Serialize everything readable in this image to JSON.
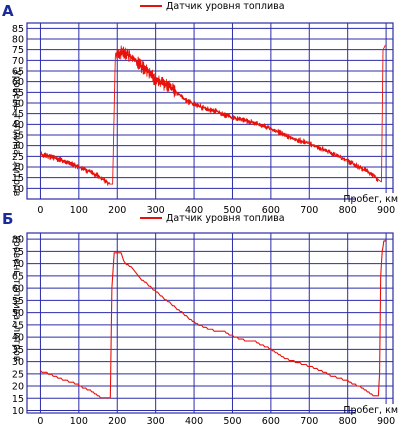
{
  "colors": {
    "grid": "#2c2ca8",
    "series": "#e8120c",
    "panel_label": "#1a2a9a",
    "text": "#000000"
  },
  "chart_data": [
    {
      "panel_label": "А",
      "type": "line",
      "legend": "Датчик уровня топлива",
      "ylabel": "Уровень топлива, литров",
      "xlabel": "Пробег, км",
      "xlim": [
        -35,
        918
      ],
      "ylim": [
        5,
        87.5
      ],
      "xticks": [
        0,
        100,
        200,
        300,
        400,
        500,
        600,
        700,
        800,
        900
      ],
      "yticks": [
        10,
        15,
        20,
        25,
        30,
        35,
        40,
        45,
        50,
        55,
        60,
        65,
        70,
        75,
        80,
        85
      ],
      "grid": true,
      "noise": true,
      "series": [
        {
          "x": [
            0,
            20,
            60,
            100,
            150,
            180,
            188,
            195,
            215,
            240,
            270,
            300,
            340,
            380,
            420,
            460,
            500,
            550,
            600,
            650,
            700,
            750,
            800,
            850,
            880,
            888,
            892,
            898
          ],
          "y": [
            26,
            25,
            23,
            20,
            16,
            12,
            12,
            73,
            74,
            71,
            66,
            61,
            57,
            51,
            48,
            46,
            43,
            41,
            38,
            34,
            31,
            27,
            23,
            18,
            14,
            13,
            75,
            77
          ]
        }
      ]
    },
    {
      "panel_label": "Б",
      "type": "line",
      "legend": "Датчик уровня топлива",
      "ylabel": "Уровень топлива, литров",
      "xlabel": "Пробег, км",
      "xlim": [
        -35,
        918
      ],
      "ylim": [
        9,
        82.5
      ],
      "xticks": [
        0,
        100,
        200,
        300,
        400,
        500,
        600,
        700,
        800,
        900
      ],
      "yticks": [
        10,
        15,
        20,
        25,
        30,
        35,
        40,
        45,
        50,
        55,
        60,
        65,
        70,
        75,
        80
      ],
      "grid": true,
      "noise": false,
      "series": [
        {
          "x": [
            0,
            25,
            50,
            90,
            130,
            160,
            182,
            186,
            192,
            198,
            210,
            220,
            240,
            260,
            290,
            320,
            360,
            400,
            440,
            480,
            520,
            560,
            600,
            640,
            680,
            720,
            760,
            800,
            840,
            870,
            880,
            883,
            886,
            890,
            894,
            900
          ],
          "y": [
            26,
            25,
            23,
            21,
            18,
            15,
            15,
            60,
            74,
            74,
            74,
            70,
            68,
            64,
            60,
            56,
            51,
            46,
            43,
            42,
            39,
            38,
            35,
            31,
            29,
            27,
            24,
            22,
            19,
            16,
            16,
            25,
            65,
            75,
            79,
            80
          ]
        }
      ]
    }
  ]
}
